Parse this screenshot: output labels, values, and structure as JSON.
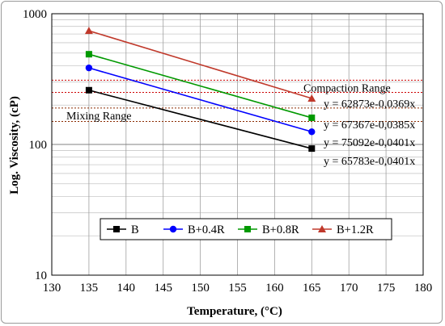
{
  "chart_data": {
    "type": "line",
    "xlabel": "Temperature, (°C)",
    "ylabel": "Log. Viscosity, (cP)",
    "xlim": [
      130,
      180
    ],
    "ylim": [
      10,
      1000
    ],
    "yscale": "log",
    "x_ticks": [
      "130",
      "135",
      "140",
      "145",
      "150",
      "155",
      "160",
      "165",
      "170",
      "175",
      "180"
    ],
    "y_ticks": [
      "10",
      "100",
      "1000"
    ],
    "grid": true,
    "legend": "bottom-center",
    "series": [
      {
        "name": "B",
        "color": "#000000",
        "marker": "square",
        "x": [
          135,
          165
        ],
        "y": [
          260,
          93
        ]
      },
      {
        "name": "B+0.4R",
        "color": "#0000ff",
        "marker": "circle",
        "x": [
          135,
          165
        ],
        "y": [
          385,
          125
        ]
      },
      {
        "name": "B+0.8R",
        "color": "#009900",
        "marker": "square",
        "x": [
          135,
          165
        ],
        "y": [
          490,
          160
        ]
      },
      {
        "name": "B+1.2R",
        "color": "#c0392b",
        "marker": "triangle",
        "x": [
          135,
          165
        ],
        "y": [
          740,
          225
        ]
      }
    ],
    "ranges": [
      {
        "label": "Compaction Range",
        "y": [
          250,
          310
        ],
        "color": "#cc0000"
      },
      {
        "label": "Mixing Range",
        "y": [
          150,
          190
        ],
        "color": "#8b2a00"
      }
    ],
    "annotations": [
      "y = 62873e-0,0369x",
      "y = 67367e-0,0385x",
      "y = 75092e-0,0401x",
      "y = 65783e-0,0401x"
    ]
  }
}
